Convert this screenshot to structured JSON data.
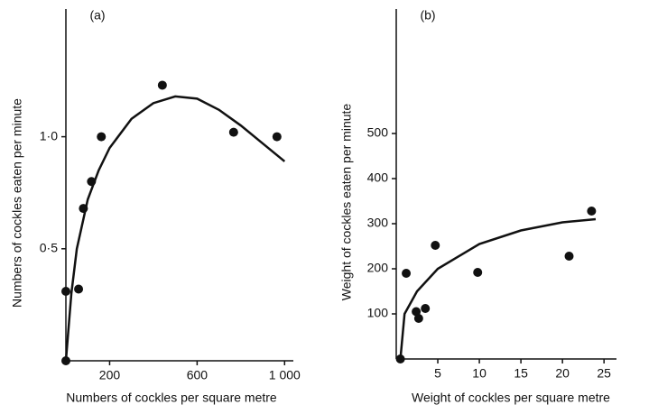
{
  "chart_data": [
    {
      "type": "scatter",
      "title": "(a)",
      "x_label": "Numbers of cockles per square metre",
      "y_label": "Numbers of cockles eaten per minute",
      "xlim": [
        0,
        1040
      ],
      "ylim": [
        0,
        1.57
      ],
      "xticks": [
        200,
        600,
        {
          "value": 1000,
          "label": "1 000"
        }
      ],
      "yticks": [
        {
          "value": 0.5,
          "label": "0·5"
        },
        {
          "value": 1.0,
          "label": "1·0"
        }
      ],
      "color": "#111111",
      "series": [
        {
          "style": "markers",
          "x": [
            0,
            0,
            58,
            80,
            117,
            162,
            441,
            767,
            965
          ],
          "values": [
            0,
            0.31,
            0.32,
            0.68,
            0.8,
            1.0,
            1.23,
            1.02,
            1.0
          ]
        },
        {
          "style": "curve",
          "x": [
            0,
            25,
            50,
            100,
            150,
            200,
            300,
            400,
            500,
            600,
            700,
            800,
            900,
            1000
          ],
          "values": [
            0,
            0.3,
            0.5,
            0.72,
            0.85,
            0.95,
            1.08,
            1.15,
            1.18,
            1.17,
            1.12,
            1.05,
            0.97,
            0.89
          ]
        }
      ]
    },
    {
      "type": "scatter",
      "title": "(b)",
      "x_label": "Weight of cockles per square metre",
      "y_label": "Weight of cockles eaten per minute",
      "xlim": [
        0,
        26.5
      ],
      "ylim": [
        0,
        776
      ],
      "xticks": [
        5,
        10,
        15,
        20,
        25
      ],
      "yticks": [
        100,
        200,
        300,
        400,
        500
      ],
      "color": "#111111",
      "series": [
        {
          "style": "markers",
          "x": [
            0.5,
            1.2,
            2.4,
            2.7,
            3.5,
            4.7,
            9.8,
            20.8,
            23.5
          ],
          "values": [
            0,
            190,
            105,
            90,
            112,
            252,
            192,
            228,
            328
          ]
        },
        {
          "style": "curve",
          "x": [
            0.5,
            1,
            2.5,
            5,
            10,
            15,
            20,
            24
          ],
          "values": [
            0,
            100,
            150,
            200,
            255,
            285,
            303,
            310
          ]
        }
      ]
    }
  ]
}
